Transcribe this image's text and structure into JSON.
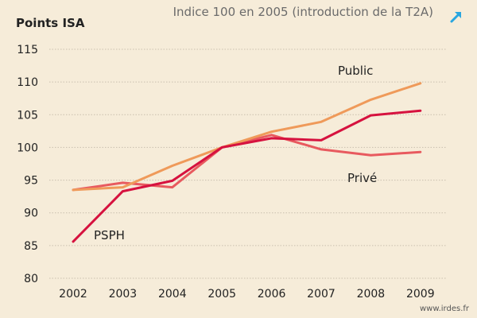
{
  "header": {
    "subtitle": "Indice 100 en 2005 (introduction de la T2A)",
    "expand_icon": "expand-arrow-icon"
  },
  "footer": {
    "source": "www.irdes.fr"
  },
  "colors": {
    "background": "#f6ecd9",
    "grid": "#c9bfae",
    "Public": "#ef9a5a",
    "PSPH": "#d6123f",
    "Privé": "#e85a5f",
    "expand_icon": "#29a6e0"
  },
  "chart_data": {
    "type": "line",
    "title": "",
    "subtitle": "Indice 100 en 2005 (introduction de la T2A)",
    "xlabel": "",
    "ylabel": "Points ISA",
    "ylim": [
      80,
      115
    ],
    "yticks": [
      80,
      85,
      90,
      95,
      100,
      105,
      110,
      115
    ],
    "categories": [
      "2002",
      "2003",
      "2004",
      "2005",
      "2006",
      "2007",
      "2008",
      "2009"
    ],
    "grid": "horizontal dotted",
    "legend": "inline labels",
    "series": [
      {
        "name": "Public",
        "values": [
          93.5,
          93.9,
          97.2,
          100,
          102.4,
          103.9,
          107.3,
          109.8
        ]
      },
      {
        "name": "PSPH",
        "values": [
          85.6,
          93.3,
          94.9,
          100,
          101.4,
          101.1,
          104.9,
          105.6
        ]
      },
      {
        "name": "Privé",
        "values": [
          93.5,
          94.6,
          93.9,
          100,
          101.9,
          99.7,
          98.8,
          99.3
        ]
      }
    ]
  }
}
